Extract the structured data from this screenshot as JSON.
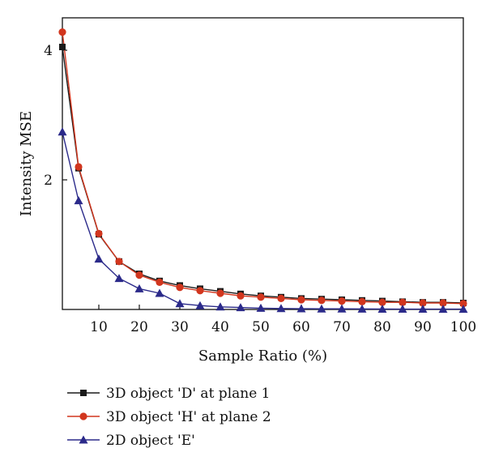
{
  "chart_data": {
    "type": "line",
    "title": "",
    "xlabel": "Sample Ratio (%)",
    "ylabel": "Intensity MSE",
    "xlim": [
      1,
      100
    ],
    "ylim": [
      0,
      4.5
    ],
    "xticks": [
      10,
      20,
      30,
      40,
      50,
      60,
      70,
      80,
      90,
      100
    ],
    "yticks": [
      2,
      4
    ],
    "grid": false,
    "legend_position": "bottom-left-outside",
    "x": [
      1,
      5,
      10,
      15,
      20,
      25,
      30,
      35,
      40,
      45,
      50,
      55,
      60,
      65,
      70,
      75,
      80,
      85,
      90,
      95,
      100
    ],
    "series": [
      {
        "name": "3D object 'D' at plane 1",
        "color": "#1a1a1a",
        "marker": "square",
        "values": [
          4.05,
          2.18,
          1.16,
          0.74,
          0.55,
          0.44,
          0.37,
          0.32,
          0.28,
          0.24,
          0.21,
          0.19,
          0.17,
          0.16,
          0.15,
          0.14,
          0.13,
          0.12,
          0.11,
          0.11,
          0.1
        ]
      },
      {
        "name": "3D object 'H' at plane 2",
        "color": "#d2361e",
        "marker": "circle",
        "values": [
          4.28,
          2.2,
          1.17,
          0.74,
          0.53,
          0.42,
          0.34,
          0.29,
          0.25,
          0.21,
          0.19,
          0.17,
          0.15,
          0.14,
          0.13,
          0.12,
          0.11,
          0.11,
          0.1,
          0.1,
          0.09
        ]
      },
      {
        "name": "2D object 'E'",
        "color": "#2b2a8a",
        "marker": "triangle",
        "values": [
          2.74,
          1.68,
          0.78,
          0.48,
          0.32,
          0.25,
          0.09,
          0.06,
          0.04,
          0.03,
          0.02,
          0.015,
          0.012,
          0.01,
          0.01,
          0.008,
          0.007,
          0.006,
          0.006,
          0.005,
          0.005
        ]
      }
    ]
  }
}
